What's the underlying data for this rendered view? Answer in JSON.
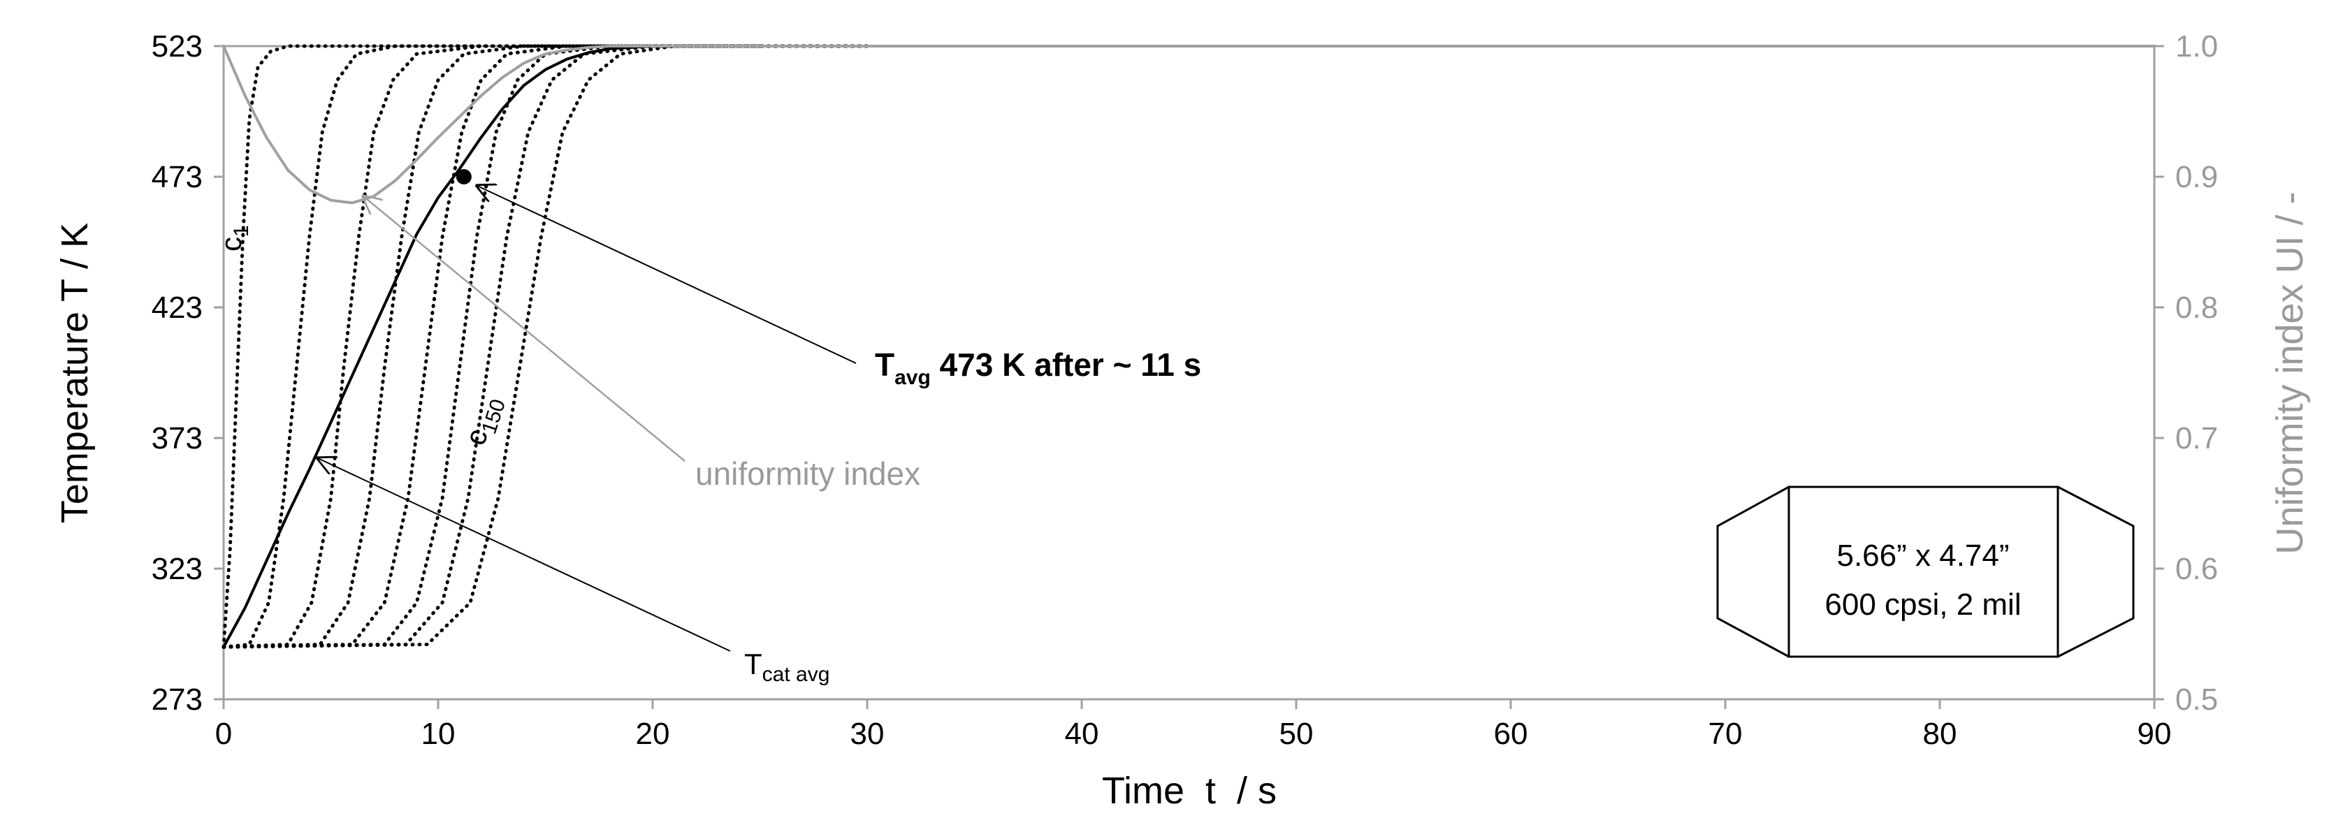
{
  "chart_data": {
    "type": "line",
    "x_axis": {
      "title": "Time  t  / s",
      "min": 0,
      "max": 90,
      "ticks": [
        0,
        10,
        20,
        30,
        40,
        50,
        60,
        70,
        80,
        90
      ]
    },
    "y_axis_left": {
      "title": "Temperature T / K",
      "min": 273,
      "max": 523,
      "ticks": [
        273,
        323,
        373,
        423,
        473,
        523
      ]
    },
    "y_axis_right": {
      "title": "Uniformity index UI / -",
      "min": 0.5,
      "max": 1.0,
      "ticks": [
        "0.5",
        "0.6",
        "0.7",
        "0.8",
        "0.9",
        "1.0"
      ]
    },
    "grid": false,
    "legend": "none",
    "colors": {
      "temperature": "#000000",
      "uniformity": "#a0a0a0",
      "right_axis": "#9a9a9a"
    },
    "series": [
      {
        "axis": "left",
        "style": "dotted",
        "x": [
          0,
          0.3,
          0.6,
          0.9,
          1.2,
          1.6,
          2.2,
          3,
          5,
          20
        ],
        "y": [
          293,
          330,
          390,
          450,
          495,
          515,
          521,
          523,
          523,
          523
        ]
      },
      {
        "axis": "left",
        "style": "dotted",
        "x": [
          0,
          1.2,
          2.1,
          2.8,
          3.4,
          4.0,
          4.6,
          5.3,
          6.2,
          8,
          20
        ],
        "y": [
          293,
          294,
          310,
          350,
          400,
          450,
          490,
          510,
          520,
          523,
          523
        ]
      },
      {
        "axis": "left",
        "style": "dotted",
        "x": [
          0,
          3.0,
          4.1,
          5.0,
          5.6,
          6.3,
          7.0,
          7.9,
          9,
          12,
          25
        ],
        "y": [
          293,
          294,
          310,
          350,
          400,
          450,
          490,
          510,
          520,
          523,
          523
        ]
      },
      {
        "axis": "left",
        "style": "dotted",
        "x": [
          0,
          4.5,
          5.8,
          6.8,
          7.5,
          8.3,
          9.1,
          10.0,
          11.2,
          14,
          25
        ],
        "y": [
          293,
          294,
          310,
          350,
          400,
          450,
          490,
          510,
          520,
          523,
          523
        ]
      },
      {
        "axis": "left",
        "style": "dotted",
        "x": [
          0,
          6.0,
          7.5,
          8.6,
          9.4,
          10.2,
          11.1,
          12.0,
          13.2,
          16,
          25
        ],
        "y": [
          293,
          294,
          310,
          350,
          400,
          450,
          490,
          510,
          520,
          523,
          523
        ]
      },
      {
        "axis": "left",
        "style": "dotted",
        "x": [
          0,
          7.5,
          9.0,
          10.2,
          11.0,
          11.8,
          12.7,
          13.7,
          15.0,
          18,
          25
        ],
        "y": [
          293,
          294,
          310,
          350,
          400,
          450,
          490,
          510,
          520,
          523,
          523
        ]
      },
      {
        "axis": "left",
        "style": "dotted",
        "x": [
          0,
          8.5,
          10.2,
          11.4,
          12.3,
          13.2,
          14.2,
          15.3,
          16.8,
          20,
          30
        ],
        "y": [
          293,
          294,
          310,
          350,
          400,
          450,
          490,
          510,
          520,
          523,
          523
        ]
      },
      {
        "axis": "left",
        "style": "dotted",
        "x": [
          0,
          9.5,
          11.5,
          12.8,
          13.8,
          14.8,
          15.8,
          17.0,
          18.5,
          21,
          30
        ],
        "y": [
          293,
          294,
          310,
          350,
          400,
          450,
          490,
          510,
          520,
          523,
          523
        ]
      },
      {
        "axis": "left",
        "style": "solid",
        "x": [
          0,
          1,
          2,
          3,
          4,
          5,
          6,
          7,
          8,
          9,
          10,
          11,
          12,
          13,
          14,
          15,
          16,
          17,
          18,
          19,
          20,
          21,
          30,
          90
        ],
        "y": [
          293,
          308,
          326,
          344,
          361,
          379,
          397,
          415,
          433,
          451,
          465,
          476,
          488,
          499,
          508,
          514,
          518,
          520.5,
          522,
          522.5,
          523,
          523,
          523,
          523
        ]
      },
      {
        "axis": "right",
        "style": "solid",
        "x": [
          0,
          1,
          2,
          3,
          4,
          5,
          6,
          7,
          8,
          9,
          10,
          11,
          12,
          13,
          14,
          15,
          16,
          17,
          18,
          20,
          22,
          30,
          90
        ],
        "y": [
          1.0,
          0.962,
          0.93,
          0.905,
          0.89,
          0.882,
          0.88,
          0.885,
          0.897,
          0.913,
          0.93,
          0.946,
          0.962,
          0.976,
          0.987,
          0.994,
          0.997,
          0.999,
          1.0,
          1.0,
          1.0,
          1.0,
          1.0
        ]
      }
    ],
    "marker": {
      "x": 11.2,
      "y": 473
    },
    "annotations": {
      "t_avg_main": "T",
      "t_avg_sub": "avg",
      "t_avg_rest": " 473 K after ~ 11 s",
      "uniformity": "uniformity index",
      "tcat_main": "T",
      "tcat_sub": "cat avg",
      "c1_main": "c",
      "c1_sub": "1",
      "c150_main": "c",
      "c150_sub": "150"
    },
    "inset_box": {
      "line1": "5.66” x 4.74”",
      "line2": "600 cpsi, 2 mil"
    }
  }
}
